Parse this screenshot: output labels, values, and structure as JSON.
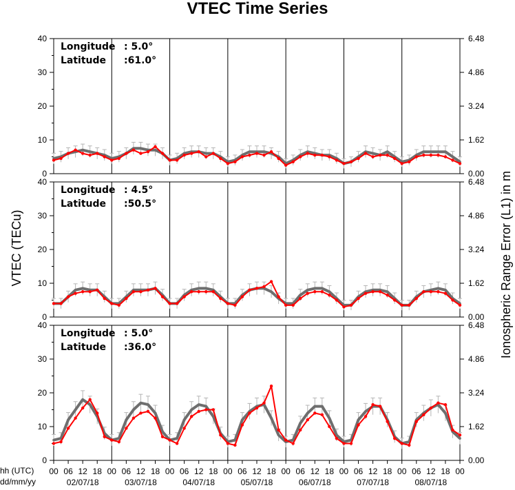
{
  "chart_data": {
    "type": "line",
    "title": "VTEC Time Series",
    "ylabel_left": "VTEC (TECu)",
    "ylabel_right": "Ionospheric Range Error (L1) in m",
    "x_axis_row_label": "hh (UTC)",
    "x_axis_date_row_label": "dd/mm/yy",
    "x_hour_ticks": [
      "00",
      "06",
      "12",
      "18",
      "00",
      "06",
      "12",
      "18",
      "00",
      "06",
      "12",
      "18",
      "00",
      "06",
      "12",
      "18",
      "00",
      "06",
      "12",
      "18",
      "00",
      "06",
      "12",
      "18",
      "00",
      "06",
      "12",
      "18",
      "00"
    ],
    "dates": [
      "02/07/18",
      "03/07/18",
      "04/07/18",
      "05/07/18",
      "06/07/18",
      "07/07/18",
      "08/07/18"
    ],
    "ylim_left": [
      0,
      40
    ],
    "left_ticks": [
      "0",
      "10",
      "20",
      "30",
      "40"
    ],
    "ylim_right": [
      0,
      6.48
    ],
    "right_ticks": [
      "0.00",
      "1.62",
      "3.24",
      "4.86",
      "6.48"
    ],
    "series_colors": {
      "gray": "#6e6e6e",
      "red": "#ff0000",
      "error_bars": "#b4b4b4"
    },
    "panels": [
      {
        "longitude_label": "Longitude",
        "longitude_value": ":   5.0°",
        "latitude_label": "Latitude",
        "latitude_value": ":61.0°",
        "series": [
          {
            "color": "gray",
            "x": [
              0,
              3,
              6,
              9,
              12,
              15,
              18,
              21,
              24,
              27,
              30,
              33,
              36,
              39,
              42,
              45,
              48,
              51,
              54,
              57,
              60,
              63,
              66,
              69,
              72,
              75,
              78,
              81,
              84,
              87,
              90,
              93,
              96,
              99,
              102,
              105,
              108,
              111,
              114,
              117,
              120,
              123,
              126,
              129,
              132,
              135,
              138,
              141,
              144,
              147,
              150,
              153,
              156,
              159,
              162,
              165,
              168
            ],
            "y": [
              4.5,
              5.0,
              6.0,
              6.5,
              7.0,
              6.5,
              6.0,
              5.5,
              4.5,
              5.0,
              6.0,
              7.5,
              7.5,
              7.0,
              7.0,
              6.0,
              4.0,
              4.5,
              6.0,
              6.5,
              6.5,
              6.0,
              6.0,
              5.0,
              3.5,
              4.0,
              5.5,
              6.5,
              6.5,
              6.5,
              6.0,
              5.0,
              3.0,
              4.0,
              5.5,
              6.5,
              6.0,
              5.5,
              5.5,
              4.5,
              3.0,
              3.5,
              5.0,
              6.5,
              6.0,
              5.5,
              6.5,
              5.0,
              3.5,
              4.0,
              5.5,
              6.5,
              6.5,
              6.5,
              6.5,
              5.0,
              3.5
            ]
          },
          {
            "color": "red",
            "x": [
              0,
              3,
              6,
              9,
              12,
              15,
              18,
              21,
              24,
              27,
              30,
              33,
              36,
              39,
              42,
              45,
              48,
              51,
              54,
              57,
              60,
              63,
              66,
              69,
              72,
              75,
              78,
              81,
              84,
              87,
              90,
              93,
              96,
              99,
              102,
              105,
              108,
              111,
              114,
              117,
              120,
              123,
              126,
              129,
              132,
              135,
              138,
              141,
              144,
              147,
              150,
              153,
              156,
              159,
              162,
              165,
              168
            ],
            "y": [
              4.0,
              4.5,
              6.0,
              7.0,
              6.0,
              5.5,
              6.0,
              5.0,
              4.0,
              4.5,
              6.0,
              7.0,
              6.0,
              6.5,
              8.0,
              6.0,
              4.0,
              4.0,
              5.5,
              6.0,
              6.5,
              5.0,
              6.0,
              4.5,
              3.0,
              3.5,
              5.0,
              5.5,
              6.0,
              5.5,
              6.5,
              4.5,
              2.5,
              3.5,
              5.0,
              6.0,
              5.5,
              5.5,
              5.0,
              4.0,
              3.0,
              3.5,
              4.5,
              6.0,
              5.0,
              5.5,
              5.5,
              4.5,
              3.0,
              3.5,
              5.0,
              5.5,
              5.5,
              5.5,
              5.0,
              4.0,
              3.0
            ]
          }
        ]
      },
      {
        "longitude_label": "Longitude",
        "longitude_value": ":   4.5°",
        "latitude_label": "Latitude",
        "latitude_value": ":50.5°",
        "series": [
          {
            "color": "gray",
            "x": [
              0,
              3,
              6,
              9,
              12,
              15,
              18,
              21,
              24,
              27,
              30,
              33,
              36,
              39,
              42,
              45,
              48,
              51,
              54,
              57,
              60,
              63,
              66,
              69,
              72,
              75,
              78,
              81,
              84,
              87,
              90,
              93,
              96,
              99,
              102,
              105,
              108,
              111,
              114,
              117,
              120,
              123,
              126,
              129,
              132,
              135,
              138,
              141,
              144,
              147,
              150,
              153,
              156,
              159,
              162,
              165,
              168
            ],
            "y": [
              4.0,
              4.0,
              6.0,
              8.0,
              8.5,
              8.0,
              8.0,
              6.0,
              4.0,
              4.0,
              6.0,
              8.0,
              8.0,
              8.0,
              8.5,
              6.5,
              4.0,
              4.0,
              6.5,
              8.0,
              8.5,
              8.5,
              8.0,
              6.0,
              4.0,
              4.0,
              6.5,
              8.0,
              8.5,
              8.5,
              7.5,
              5.5,
              4.0,
              4.0,
              6.5,
              8.0,
              8.5,
              8.5,
              7.5,
              5.5,
              3.5,
              3.5,
              6.0,
              7.5,
              8.0,
              8.0,
              7.5,
              5.5,
              3.5,
              3.5,
              6.0,
              7.5,
              8.0,
              8.5,
              8.0,
              5.5,
              4.0
            ]
          },
          {
            "color": "red",
            "x": [
              0,
              3,
              6,
              9,
              12,
              15,
              18,
              21,
              24,
              27,
              30,
              33,
              36,
              39,
              42,
              45,
              48,
              51,
              54,
              57,
              60,
              63,
              66,
              69,
              72,
              75,
              78,
              81,
              84,
              87,
              90,
              93,
              96,
              99,
              102,
              105,
              108,
              111,
              114,
              117,
              120,
              123,
              126,
              129,
              132,
              135,
              138,
              141,
              144,
              147,
              150,
              153,
              156,
              159,
              162,
              165,
              168
            ],
            "y": [
              4.0,
              4.0,
              6.0,
              7.0,
              7.5,
              7.5,
              8.0,
              5.5,
              4.0,
              3.5,
              5.5,
              7.5,
              7.5,
              8.0,
              8.5,
              6.0,
              4.0,
              4.0,
              6.0,
              7.5,
              7.5,
              7.5,
              7.5,
              5.5,
              4.0,
              3.5,
              6.0,
              8.0,
              8.5,
              9.0,
              10.5,
              6.0,
              3.5,
              3.5,
              5.5,
              7.0,
              7.5,
              7.5,
              6.5,
              5.0,
              3.0,
              3.5,
              5.5,
              7.0,
              7.5,
              7.5,
              6.5,
              5.0,
              3.5,
              3.5,
              5.5,
              7.5,
              7.5,
              7.5,
              7.0,
              5.0,
              3.5
            ]
          }
        ]
      },
      {
        "longitude_label": "Longitude",
        "longitude_value": ":   5.0°",
        "latitude_label": "Latitude",
        "latitude_value": ":36.0°",
        "series": [
          {
            "color": "gray",
            "x": [
              0,
              3,
              6,
              9,
              12,
              15,
              18,
              21,
              24,
              27,
              30,
              33,
              36,
              39,
              42,
              45,
              48,
              51,
              54,
              57,
              60,
              63,
              66,
              69,
              72,
              75,
              78,
              81,
              84,
              87,
              90,
              93,
              96,
              99,
              102,
              105,
              108,
              111,
              114,
              117,
              120,
              123,
              126,
              129,
              132,
              135,
              138,
              141,
              144,
              147,
              150,
              153,
              156,
              159,
              162,
              165,
              168
            ],
            "y": [
              6.0,
              6.5,
              12.0,
              15.0,
              18.0,
              16.5,
              13.0,
              8.0,
              6.0,
              6.5,
              12.0,
              15.0,
              17.0,
              16.5,
              14.0,
              8.5,
              6.0,
              6.5,
              12.0,
              15.0,
              16.5,
              16.0,
              13.0,
              8.0,
              5.5,
              6.0,
              12.0,
              14.5,
              16.0,
              16.5,
              12.5,
              7.5,
              5.5,
              6.0,
              11.0,
              14.0,
              16.0,
              16.0,
              12.5,
              7.5,
              5.5,
              6.0,
              12.0,
              14.5,
              16.0,
              16.0,
              12.0,
              7.0,
              5.0,
              5.5,
              12.0,
              14.0,
              15.5,
              16.5,
              14.0,
              8.5,
              6.5
            ]
          },
          {
            "color": "red",
            "x": [
              0,
              3,
              6,
              9,
              12,
              15,
              18,
              21,
              24,
              27,
              30,
              33,
              36,
              39,
              42,
              45,
              48,
              51,
              54,
              57,
              60,
              63,
              66,
              69,
              72,
              75,
              78,
              81,
              84,
              87,
              90,
              93,
              96,
              99,
              102,
              105,
              108,
              111,
              114,
              117,
              120,
              123,
              126,
              129,
              132,
              135,
              138,
              141,
              144,
              147,
              150,
              153,
              156,
              159,
              162,
              165,
              168
            ],
            "y": [
              5.0,
              5.5,
              9.5,
              12.5,
              15.5,
              18.0,
              14.0,
              7.0,
              6.0,
              5.5,
              9.5,
              12.5,
              14.0,
              14.5,
              12.5,
              7.0,
              6.0,
              5.0,
              9.5,
              13.0,
              14.5,
              15.0,
              15.0,
              7.5,
              5.0,
              4.5,
              10.5,
              14.0,
              15.5,
              17.0,
              22.0,
              9.0,
              6.0,
              5.0,
              9.0,
              12.0,
              14.0,
              13.5,
              10.0,
              6.5,
              5.0,
              5.0,
              10.5,
              13.0,
              16.5,
              16.0,
              11.5,
              6.5,
              5.0,
              4.5,
              11.5,
              13.5,
              15.5,
              17.0,
              16.5,
              9.0,
              7.5
            ]
          }
        ]
      }
    ]
  }
}
